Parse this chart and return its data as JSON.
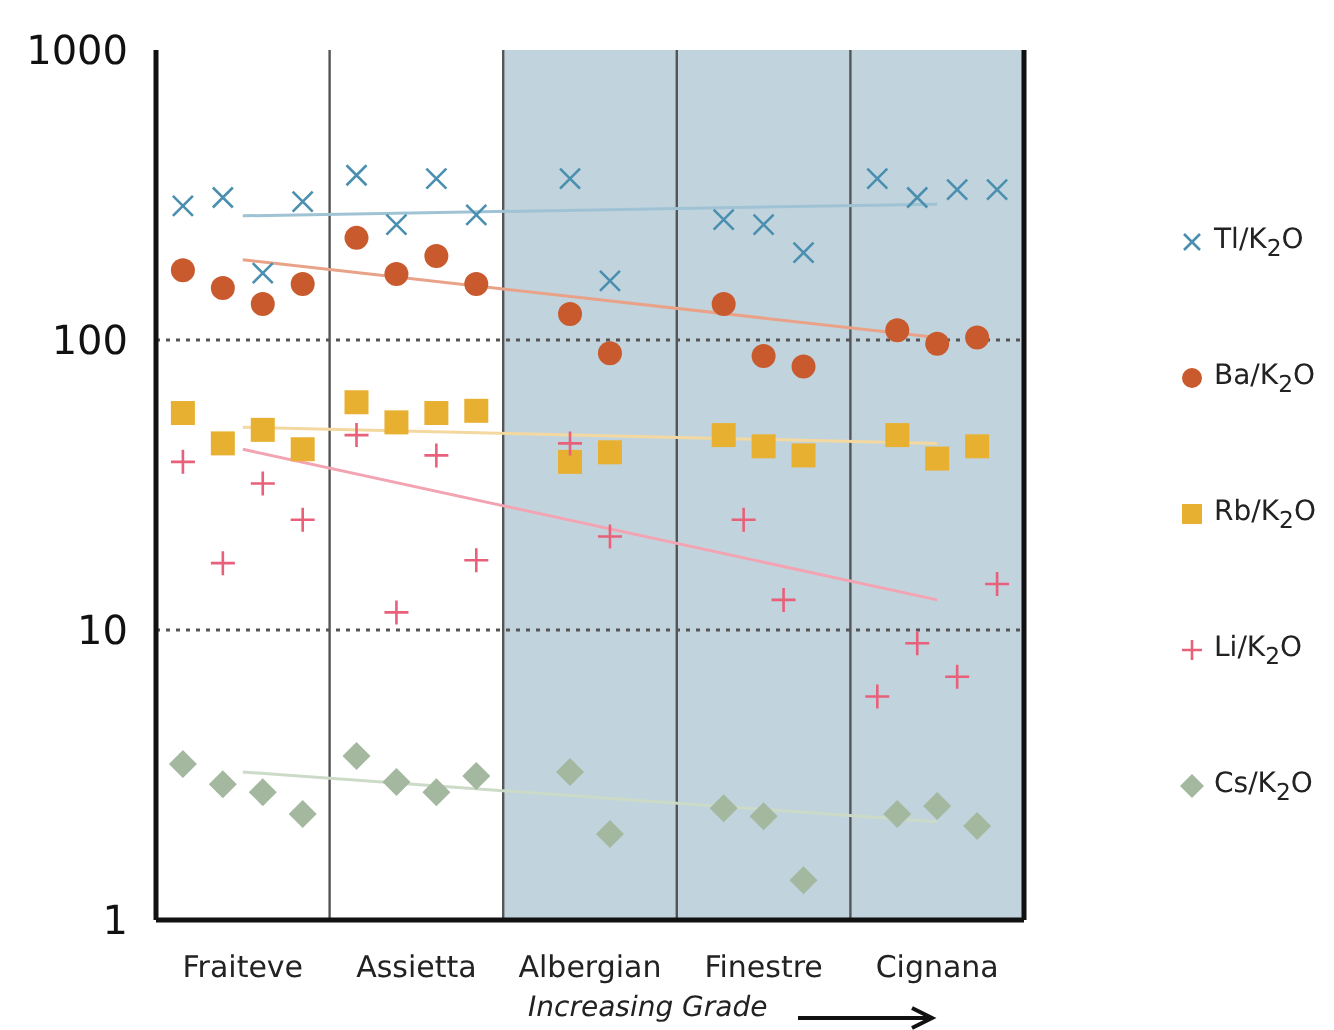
{
  "chart_data": {
    "type": "scatter",
    "annotations": [
      "Increasing Grade"
    ],
    "categories": [
      "Fraiteve",
      "Assietta",
      "Albergian",
      "Finestre",
      "Cignana"
    ],
    "ylim": [
      1,
      1000
    ],
    "yticks": [
      1,
      10,
      100,
      1000
    ],
    "log": "y",
    "grid": "x",
    "legend": "right",
    "ref_lines": [
      {
        "axis": "y",
        "value": 10,
        "label": null,
        "color": "#555555",
        "line_style": "dotted"
      },
      {
        "axis": "y",
        "value": 100,
        "label": null,
        "color": "#555555",
        "line_style": "dotted"
      }
    ],
    "bands": [
      {
        "axis": "x",
        "from": "Albergian",
        "to": "Cignana",
        "label": null,
        "color": "#c1d4dd"
      }
    ],
    "series": [
      {
        "name": "Tl/K$_{2}$O",
        "color": "#4a8fb0",
        "marker": "x",
        "x": [
          "Fraiteve",
          "Fraiteve",
          "Fraiteve",
          "Fraiteve",
          "Assietta",
          "Assietta",
          "Assietta",
          "Assietta",
          "Albergian",
          "Albergian",
          "Finestre",
          "Finestre",
          "Finestre",
          "Cignana",
          "Cignana",
          "Cignana",
          "Cignana"
        ],
        "values": [
          290,
          310,
          170,
          300,
          370,
          250,
          360,
          270,
          360,
          160,
          260,
          250,
          200,
          360,
          310,
          330,
          330
        ]
      },
      {
        "name": "Ba/K$_{2}$O",
        "color": "#c85a2e",
        "marker": "circle",
        "x": [
          "Fraiteve",
          "Fraiteve",
          "Fraiteve",
          "Fraiteve",
          "Assietta",
          "Assietta",
          "Assietta",
          "Assietta",
          "Albergian",
          "Albergian",
          "Finestre",
          "Finestre",
          "Finestre",
          "Cignana",
          "Cignana",
          "Cignana"
        ],
        "values": [
          174,
          151,
          133,
          156,
          225,
          169,
          195,
          156,
          123,
          90,
          133,
          88,
          81,
          108,
          97,
          102
        ]
      },
      {
        "name": "Rb/K$_{2}$O",
        "color": "#e8b030",
        "marker": "square",
        "x": [
          "Fraiteve",
          "Fraiteve",
          "Fraiteve",
          "Fraiteve",
          "Assietta",
          "Assietta",
          "Assietta",
          "Assietta",
          "Albergian",
          "Albergian",
          "Finestre",
          "Finestre",
          "Finestre",
          "Cignana",
          "Cignana",
          "Cignana"
        ],
        "values": [
          56,
          44,
          49,
          42,
          61,
          52,
          56,
          57,
          38,
          41,
          47,
          43,
          40,
          47,
          39,
          43
        ]
      },
      {
        "name": "Li/K$_{2}$O",
        "color": "#e8607a",
        "marker": "cross",
        "x": [
          "Fraiteve",
          "Fraiteve",
          "Fraiteve",
          "Fraiteve",
          "Assietta",
          "Assietta",
          "Assietta",
          "Assietta",
          "Albergian",
          "Albergian",
          "Finestre",
          "Finestre",
          "Cignana",
          "Cignana",
          "Cignana",
          "Cignana"
        ],
        "values": [
          38,
          17,
          32,
          24,
          47,
          11.5,
          40,
          17.4,
          44,
          21,
          24,
          12.7,
          5.9,
          9.0,
          6.9,
          14.4
        ]
      },
      {
        "name": "Cs/K$_{2}$O",
        "color": "#a3b89e",
        "marker": "diamond",
        "x": [
          "Fraiteve",
          "Fraiteve",
          "Fraiteve",
          "Fraiteve",
          "Assietta",
          "Assietta",
          "Assietta",
          "Assietta",
          "Albergian",
          "Albergian",
          "Finestre",
          "Finestre",
          "Finestre",
          "Cignana",
          "Cignana",
          "Cignana"
        ],
        "values": [
          3.45,
          2.94,
          2.76,
          2.32,
          3.68,
          2.99,
          2.76,
          3.14,
          3.24,
          1.98,
          2.43,
          2.28,
          1.37,
          2.32,
          2.47,
          2.11
        ]
      },
      {
        "type": "line",
        "color": "#9fc3d4",
        "x": [
          "Fraiteve",
          "Cignana"
        ],
        "values": [
          268,
          294
        ]
      },
      {
        "type": "line",
        "color": "#e9a288",
        "x": [
          "Fraiteve",
          "Cignana"
        ],
        "values": [
          189,
          102
        ]
      },
      {
        "type": "line",
        "color": "#f3d8a0",
        "x": [
          "Fraiteve",
          "Cignana"
        ],
        "values": [
          50,
          44
        ]
      },
      {
        "type": "line",
        "color": "#f2a4b3",
        "x": [
          "Fraiteve",
          "Cignana"
        ],
        "values": [
          42,
          12.7
        ]
      },
      {
        "type": "line",
        "color": "#ccdac8",
        "x": [
          "Fraiteve",
          "Cignana"
        ],
        "values": [
          3.24,
          2.18
        ]
      }
    ]
  }
}
